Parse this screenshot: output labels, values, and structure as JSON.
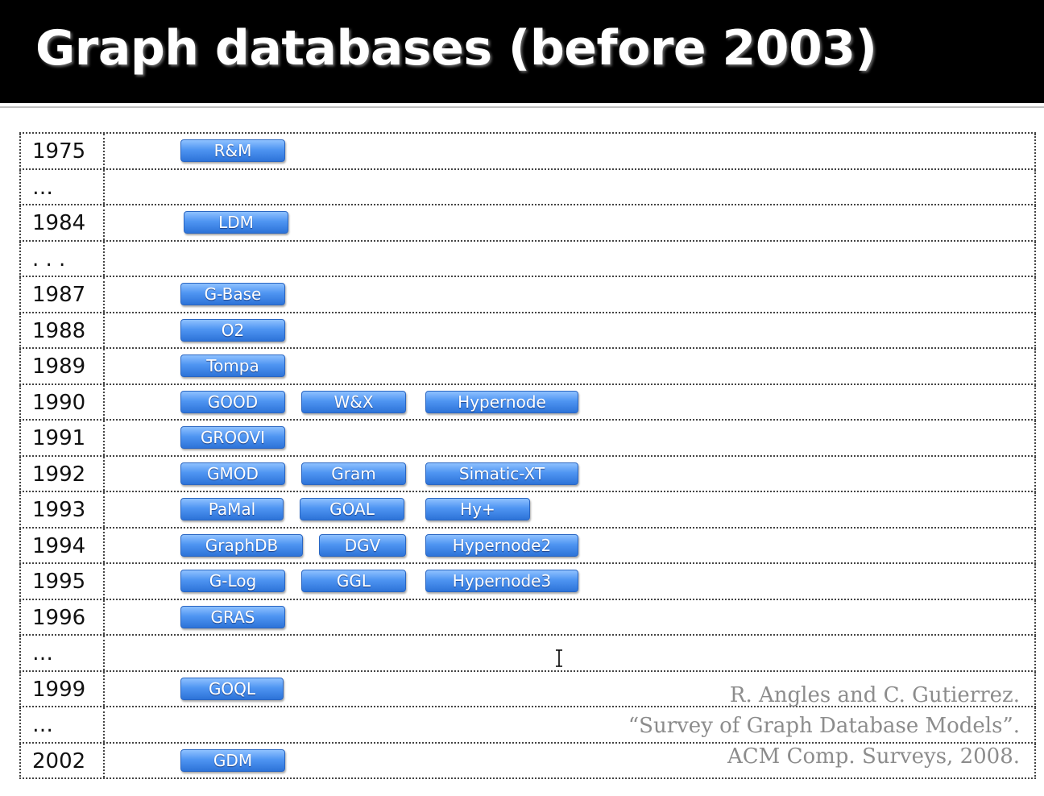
{
  "title": "Graph databases (before 2003)",
  "rows": [
    {
      "year": "1975",
      "items": [
        "R&M"
      ]
    },
    {
      "year": "…",
      "items": []
    },
    {
      "year": "1984",
      "items": [
        "LDM"
      ]
    },
    {
      "year": ". . .",
      "items": []
    },
    {
      "year": "1987",
      "items": [
        "G-Base"
      ]
    },
    {
      "year": "1988",
      "items": [
        "O2"
      ]
    },
    {
      "year": "1989",
      "items": [
        "Tompa"
      ]
    },
    {
      "year": "1990",
      "items": [
        "GOOD",
        "W&X",
        "Hypernode"
      ]
    },
    {
      "year": "1991",
      "items": [
        "GROOVI"
      ]
    },
    {
      "year": "1992",
      "items": [
        "GMOD",
        "Gram",
        "Simatic-XT"
      ]
    },
    {
      "year": "1993",
      "items": [
        "PaMal",
        "GOAL",
        "Hy+"
      ]
    },
    {
      "year": "1994",
      "items": [
        "GraphDB",
        "DGV",
        "Hypernode2"
      ]
    },
    {
      "year": "1995",
      "items": [
        "G-Log",
        "GGL",
        "Hypernode3"
      ]
    },
    {
      "year": "1996",
      "items": [
        "GRAS"
      ]
    },
    {
      "year": "…",
      "items": []
    },
    {
      "year": "1999",
      "items": [
        "GOQL"
      ]
    },
    {
      "year": "…",
      "items": []
    },
    {
      "year": "2002",
      "items": [
        "GDM"
      ]
    }
  ],
  "citation": {
    "line1": "R. Angles and C. Gutierrez.",
    "line2": "“Survey of Graph Database Models”.",
    "line3": "ACM Comp. Surveys, 2008."
  }
}
